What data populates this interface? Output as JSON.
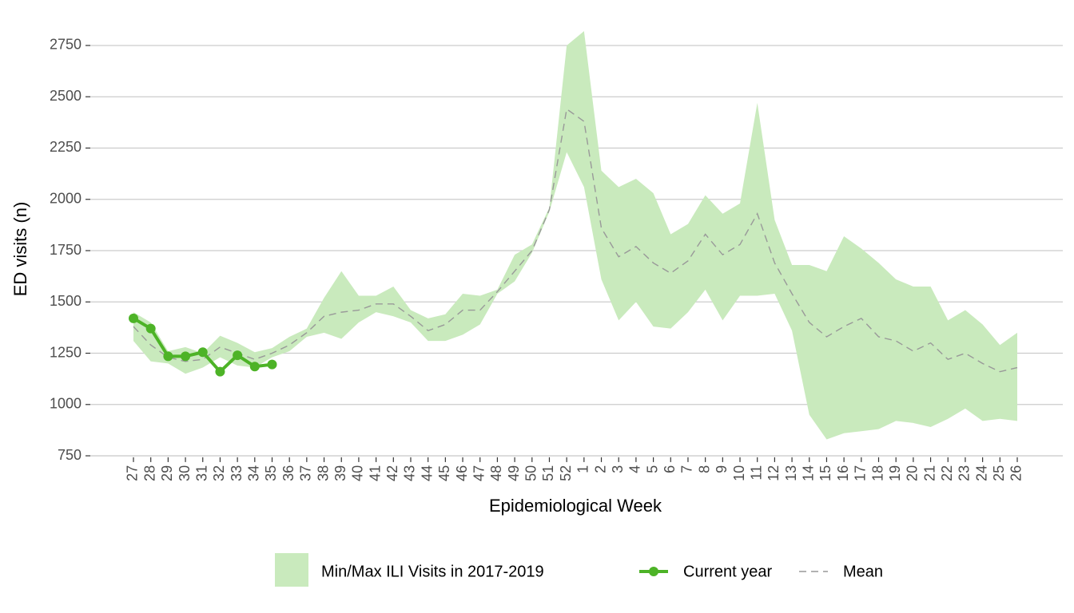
{
  "chart_data": {
    "type": "line",
    "x_label": "Epidemiological Week",
    "y_label": "ED visits (n)",
    "categories": [
      "27",
      "28",
      "29",
      "30",
      "31",
      "32",
      "33",
      "34",
      "35",
      "36",
      "37",
      "38",
      "39",
      "40",
      "41",
      "42",
      "43",
      "44",
      "45",
      "46",
      "47",
      "48",
      "49",
      "50",
      "51",
      "52",
      "1",
      "2",
      "3",
      "4",
      "5",
      "6",
      "7",
      "8",
      "9",
      "10",
      "11",
      "12",
      "13",
      "14",
      "15",
      "16",
      "17",
      "18",
      "19",
      "20",
      "21",
      "22",
      "23",
      "24",
      "25",
      "26"
    ],
    "ylim": [
      700,
      2830
    ],
    "yticks": [
      750,
      1000,
      1250,
      1500,
      1750,
      2000,
      2250,
      2500,
      2750
    ],
    "grid": true,
    "legend": "bottom",
    "band": {
      "name": "Min/Max ILI Visits in 2017-2019",
      "color": "#c9eabd",
      "lower": [
        1310,
        1210,
        1200,
        1150,
        1180,
        1230,
        1190,
        1180,
        1230,
        1260,
        1330,
        1350,
        1320,
        1400,
        1450,
        1430,
        1400,
        1310,
        1310,
        1340,
        1390,
        1540,
        1600,
        1740,
        1940,
        2230,
        2060,
        1610,
        1410,
        1500,
        1380,
        1370,
        1450,
        1560,
        1410,
        1530,
        1530,
        1540,
        1360,
        950,
        830,
        860,
        870,
        880,
        920,
        910,
        890,
        930,
        980,
        920,
        930,
        920
      ],
      "upper": [
        1450,
        1400,
        1260,
        1280,
        1250,
        1335,
        1300,
        1255,
        1275,
        1330,
        1370,
        1520,
        1650,
        1530,
        1530,
        1575,
        1460,
        1420,
        1440,
        1540,
        1530,
        1560,
        1730,
        1780,
        1960,
        2750,
        2820,
        2140,
        2060,
        2100,
        2030,
        1830,
        1880,
        2020,
        1930,
        1980,
        2470,
        1900,
        1680,
        1680,
        1650,
        1820,
        1760,
        1690,
        1610,
        1575,
        1575,
        1410,
        1460,
        1390,
        1290,
        1350
      ]
    },
    "series": [
      {
        "name": "Current year",
        "color": "#4db327",
        "values": [
          1420,
          1370,
          1235,
          1235,
          1255,
          1160,
          1240,
          1185,
          1195,
          null,
          null,
          null,
          null,
          null,
          null,
          null,
          null,
          null,
          null,
          null,
          null,
          null,
          null,
          null,
          null,
          null,
          null,
          null,
          null,
          null,
          null,
          null,
          null,
          null,
          null,
          null,
          null,
          null,
          null,
          null,
          null,
          null,
          null,
          null,
          null,
          null,
          null,
          null,
          null,
          null,
          null,
          null
        ]
      },
      {
        "name": "Mean",
        "color": "#999999",
        "dashed": true,
        "values": [
          1380,
          1290,
          1230,
          1210,
          1220,
          1280,
          1250,
          1220,
          1250,
          1290,
          1350,
          1430,
          1450,
          1460,
          1490,
          1490,
          1430,
          1360,
          1390,
          1460,
          1460,
          1550,
          1650,
          1750,
          1950,
          2440,
          2380,
          1860,
          1720,
          1770,
          1690,
          1640,
          1700,
          1830,
          1730,
          1780,
          1930,
          1690,
          1540,
          1400,
          1330,
          1380,
          1420,
          1330,
          1310,
          1260,
          1300,
          1220,
          1250,
          1200,
          1160,
          1180
        ]
      }
    ]
  }
}
